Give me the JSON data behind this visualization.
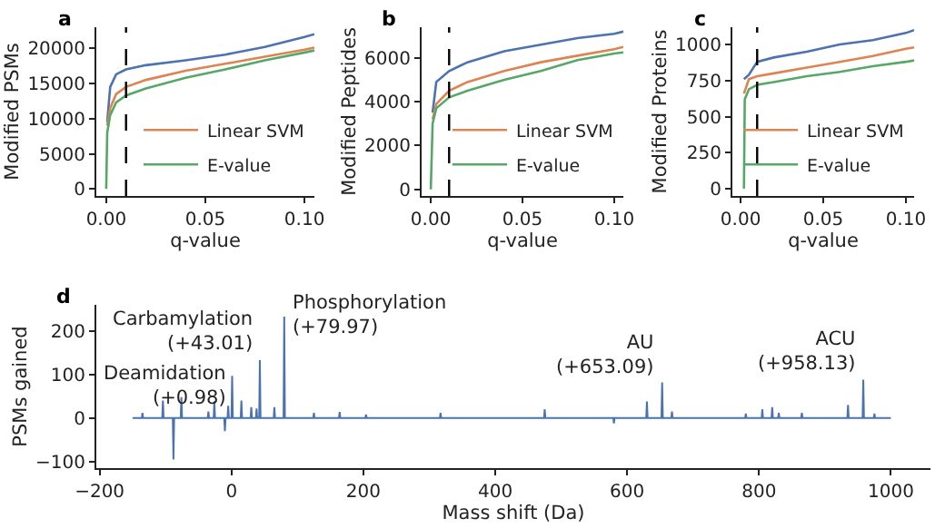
{
  "chart_data": [
    {
      "type": "line",
      "title": "a",
      "xlabel": "q-value",
      "ylabel": "Modified PSMs",
      "xlim": [
        -0.005,
        0.105
      ],
      "xticks": [
        {
          "value": 0,
          "label": "0.00"
        },
        {
          "value": 0.05,
          "label": "0.05"
        },
        {
          "value": 0.1,
          "label": "0.10"
        }
      ],
      "ylim": [
        -1000,
        23000
      ],
      "yticks": [
        0,
        5000,
        10000,
        15000,
        20000
      ],
      "legend": "bottom right",
      "grid": false,
      "ref_lines": [
        {
          "axis": "x",
          "value": 0.01,
          "color": "#000000",
          "line_style": "dashed"
        }
      ],
      "series": [
        {
          "color": "#4c72b0",
          "x": [
            0.0005,
            0.002,
            0.005,
            0.01,
            0.02,
            0.04,
            0.06,
            0.08,
            0.1,
            0.105
          ],
          "values": [
            9500,
            14500,
            16300,
            17000,
            17600,
            18300,
            19100,
            20200,
            21600,
            22000
          ]
        },
        {
          "name": "Linear SVM",
          "color": "#dd8452",
          "x": [
            0.0005,
            0.002,
            0.005,
            0.01,
            0.02,
            0.04,
            0.06,
            0.08,
            0.1,
            0.105
          ],
          "values": [
            9000,
            11500,
            13500,
            14500,
            15500,
            16800,
            17800,
            18800,
            19800,
            20100
          ]
        },
        {
          "name": "E-value",
          "color": "#55a868",
          "x": [
            0,
            0.0005,
            0.002,
            0.005,
            0.01,
            0.02,
            0.04,
            0.06,
            0.08,
            0.1,
            0.105
          ],
          "values": [
            0,
            8000,
            10500,
            12300,
            13300,
            14300,
            15800,
            17000,
            18300,
            19400,
            19700
          ]
        }
      ]
    },
    {
      "type": "line",
      "title": "b",
      "xlabel": "q-value",
      "ylabel": "Modified Peptides",
      "xlim": [
        -0.005,
        0.105
      ],
      "xticks": [
        {
          "value": 0,
          "label": "0.00"
        },
        {
          "value": 0.05,
          "label": "0.05"
        },
        {
          "value": 0.1,
          "label": "0.10"
        }
      ],
      "ylim": [
        -300,
        7400
      ],
      "yticks": [
        0,
        2000,
        4000,
        6000
      ],
      "legend": "bottom right",
      "grid": false,
      "ref_lines": [
        {
          "axis": "x",
          "value": 0.01,
          "color": "#000000",
          "line_style": "dashed"
        }
      ],
      "series": [
        {
          "color": "#4c72b0",
          "x": [
            0.001,
            0.003,
            0.01,
            0.02,
            0.04,
            0.06,
            0.08,
            0.1,
            0.105
          ],
          "values": [
            3500,
            4900,
            5400,
            5800,
            6300,
            6600,
            6900,
            7100,
            7200
          ]
        },
        {
          "name": "Linear SVM",
          "color": "#dd8452",
          "x": [
            0.001,
            0.003,
            0.01,
            0.02,
            0.04,
            0.06,
            0.08,
            0.1,
            0.105
          ],
          "values": [
            3200,
            3900,
            4500,
            4900,
            5400,
            5800,
            6100,
            6400,
            6500
          ]
        },
        {
          "name": "E-value",
          "color": "#55a868",
          "x": [
            0,
            0.001,
            0.003,
            0.01,
            0.02,
            0.04,
            0.06,
            0.08,
            0.1,
            0.105
          ],
          "values": [
            0,
            3000,
            3700,
            4200,
            4500,
            5000,
            5400,
            5900,
            6200,
            6250
          ]
        }
      ]
    },
    {
      "type": "line",
      "title": "c",
      "xlabel": "q-value",
      "ylabel": "Modified Proteins",
      "xlim": [
        -0.005,
        0.105
      ],
      "xticks": [
        {
          "value": 0,
          "label": "0.00"
        },
        {
          "value": 0.05,
          "label": "0.05"
        },
        {
          "value": 0.1,
          "label": "0.10"
        }
      ],
      "ylim": [
        -50,
        1120
      ],
      "yticks": [
        0,
        250,
        500,
        750,
        1000
      ],
      "legend": "bottom right",
      "grid": false,
      "ref_lines": [
        {
          "axis": "x",
          "value": 0.01,
          "color": "#000000",
          "line_style": "dashed"
        }
      ],
      "series": [
        {
          "color": "#4c72b0",
          "x": [
            0.002,
            0.005,
            0.01,
            0.02,
            0.04,
            0.06,
            0.08,
            0.1,
            0.105
          ],
          "values": [
            760,
            790,
            880,
            910,
            950,
            1000,
            1030,
            1080,
            1100
          ]
        },
        {
          "name": "Linear SVM",
          "color": "#dd8452",
          "x": [
            0.002,
            0.005,
            0.01,
            0.02,
            0.04,
            0.06,
            0.08,
            0.1,
            0.105
          ],
          "values": [
            660,
            760,
            780,
            800,
            840,
            880,
            920,
            970,
            980
          ]
        },
        {
          "name": "E-value",
          "color": "#55a868",
          "x": [
            0.002,
            0.0025,
            0.005,
            0.01,
            0.02,
            0.04,
            0.06,
            0.08,
            0.1,
            0.105
          ],
          "values": [
            0,
            620,
            690,
            720,
            740,
            780,
            810,
            850,
            880,
            890
          ]
        }
      ]
    },
    {
      "type": "line",
      "title": "d",
      "xlabel": "Mass shift (Da)",
      "ylabel": "PSMs gained",
      "xlim": [
        -205,
        1060
      ],
      "xticks": [
        -200,
        0,
        200,
        400,
        600,
        800,
        1000
      ],
      "ylim": [
        -115,
        260
      ],
      "yticks": [
        -100,
        0,
        100,
        200
      ],
      "grid": false,
      "annotations": [
        {
          "text": "Deamidation\n(+0.98)",
          "x": 0.98,
          "y": 97
        },
        {
          "text": "Carbamylation\n(+43.01)",
          "x": 43.01,
          "y": 133
        },
        {
          "text": "Phosphorylation\n(+79.97)",
          "x": 79.97,
          "y": 233
        },
        {
          "text": "AU\n(+653.09)",
          "x": 653.09,
          "y": 82
        },
        {
          "text": "ACU\n(+958.13)",
          "x": 958.13,
          "y": 88
        }
      ],
      "series": [
        {
          "color": "#4c72b0",
          "x": [
            -150,
            -136,
            -135,
            -134,
            -105,
            -104,
            -103,
            -89,
            -88,
            -87,
            -77,
            -76,
            -75,
            -36,
            -35,
            -34,
            -27,
            -26,
            -25,
            -11,
            -10,
            -9,
            -6,
            -5,
            -4,
            -0.02,
            0.98,
            1.98,
            14,
            15,
            16,
            29,
            30,
            31,
            37,
            38,
            39,
            42.01,
            43.01,
            44.01,
            64,
            65,
            66,
            78.97,
            79.97,
            80.97,
            124,
            125,
            126,
            163,
            164,
            165,
            203,
            204,
            205,
            316,
            317,
            318,
            474,
            475,
            476,
            579,
            580,
            581,
            629,
            630,
            631,
            652.09,
            653.09,
            654.09,
            667,
            668,
            669,
            779,
            780,
            781,
            804,
            805,
            806,
            819,
            820,
            821,
            829,
            830,
            831,
            864,
            865,
            866,
            934,
            935,
            936,
            957.13,
            958.13,
            959.13,
            974,
            975,
            976,
            1000
          ],
          "values": [
            0,
            0,
            12,
            0,
            0,
            40,
            0,
            0,
            -95,
            0,
            0,
            48,
            0,
            0,
            15,
            0,
            0,
            38,
            0,
            0,
            -30,
            0,
            0,
            28,
            0,
            0,
            97,
            0,
            0,
            40,
            0,
            0,
            25,
            0,
            0,
            22,
            0,
            0,
            133,
            0,
            0,
            25,
            0,
            0,
            233,
            0,
            0,
            12,
            0,
            0,
            14,
            0,
            0,
            8,
            0,
            0,
            12,
            0,
            0,
            20,
            0,
            0,
            -12,
            0,
            0,
            38,
            0,
            0,
            82,
            0,
            0,
            15,
            0,
            0,
            10,
            0,
            0,
            20,
            0,
            0,
            25,
            0,
            0,
            12,
            0,
            0,
            12,
            0,
            0,
            30,
            0,
            0,
            88,
            0,
            0,
            10,
            0,
            0
          ]
        }
      ]
    }
  ]
}
